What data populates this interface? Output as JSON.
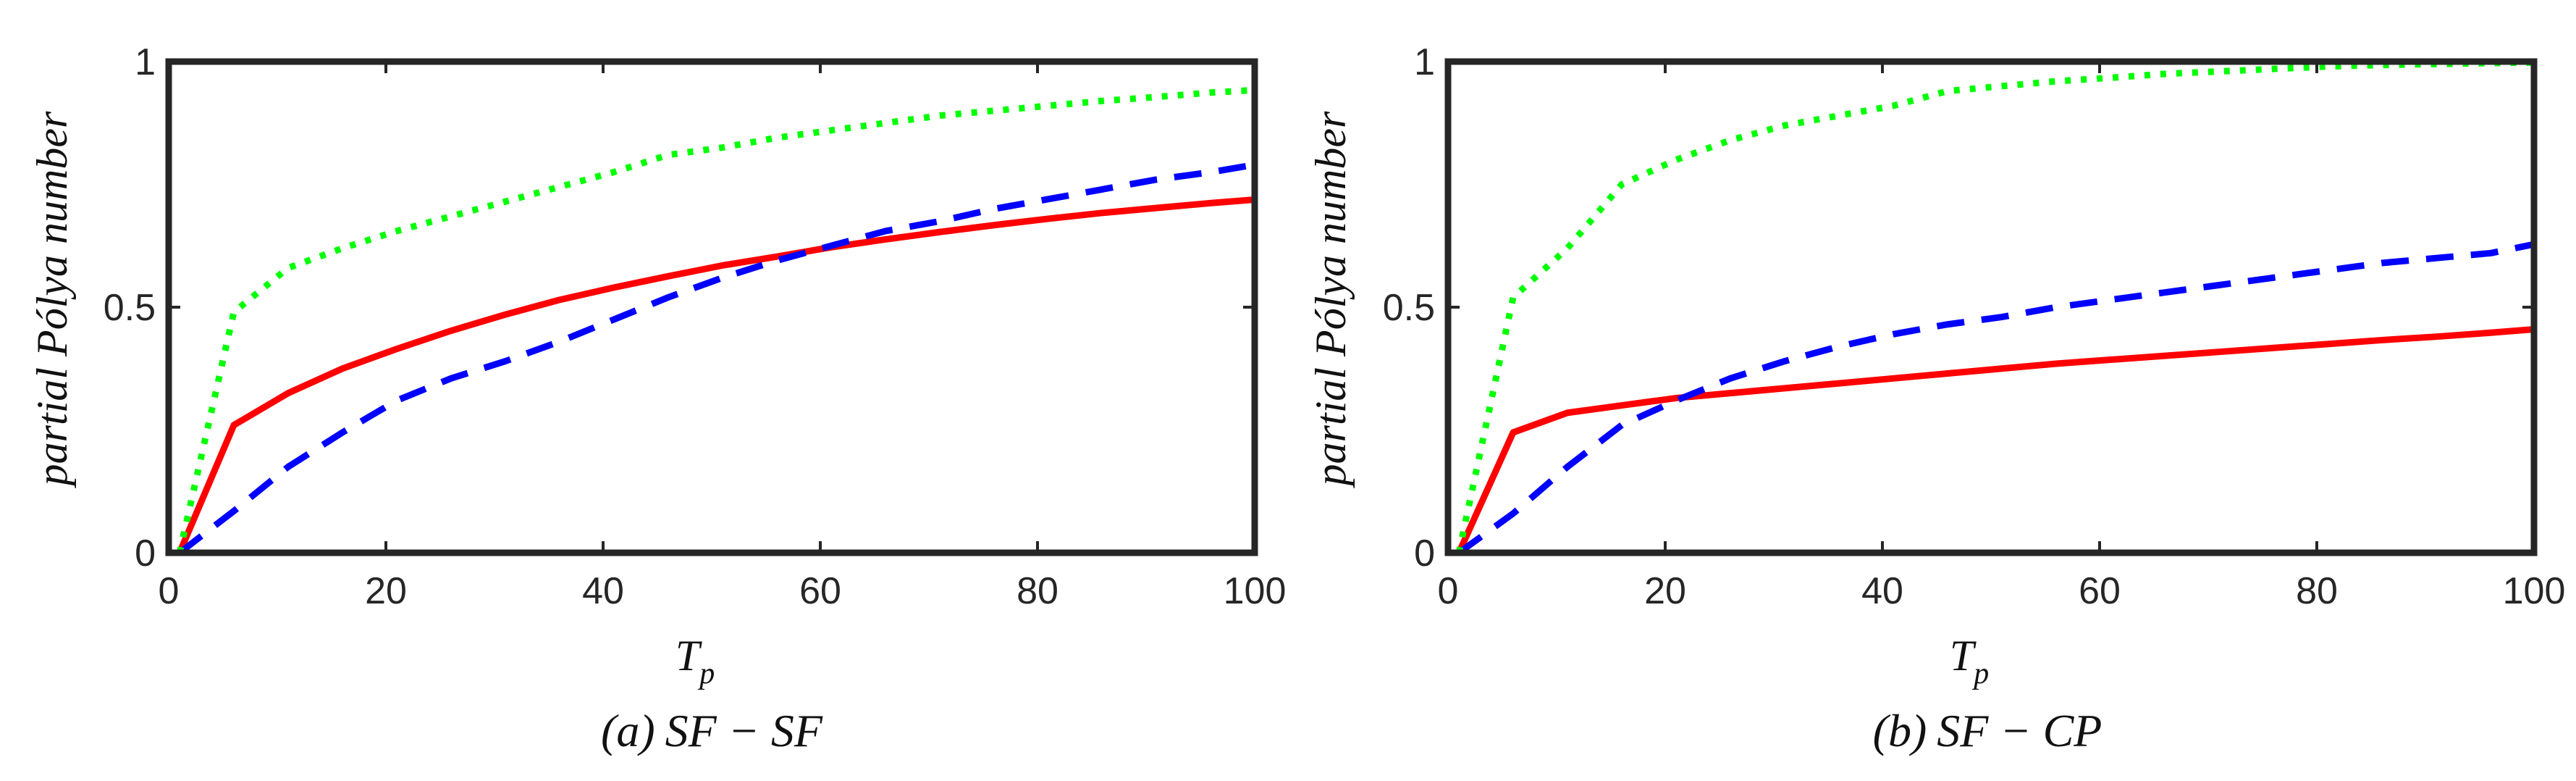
{
  "colors": {
    "solid": "#ff0000",
    "dashed": "#0000ff",
    "dotted": "#00ff00",
    "axis": "#262626"
  },
  "chart_data": [
    {
      "type": "line",
      "caption": {
        "label": "(a)",
        "text": "SF − SF"
      },
      "xlabel": {
        "main": "T",
        "sub": "p"
      },
      "ylabel": "partial Pólya number",
      "xlim": [
        0,
        100
      ],
      "ylim": [
        0,
        1
      ],
      "xticks": [
        "0",
        "20",
        "40",
        "60",
        "80",
        "100"
      ],
      "yticks": [
        "0",
        "0.5",
        "1"
      ],
      "series": [
        {
          "name": "solid",
          "style": "solid",
          "color": "#ff0000",
          "x": [
            1,
            6,
            11,
            16,
            21,
            26,
            31,
            36,
            41,
            46,
            51,
            56,
            61,
            66,
            71,
            76,
            81,
            86,
            91,
            96,
            100
          ],
          "y": [
            0,
            0.26,
            0.325,
            0.375,
            0.415,
            0.452,
            0.485,
            0.515,
            0.54,
            0.563,
            0.585,
            0.603,
            0.622,
            0.638,
            0.653,
            0.667,
            0.68,
            0.692,
            0.702,
            0.712,
            0.719
          ]
        },
        {
          "name": "dashed",
          "style": "dashed",
          "color": "#0000ff",
          "x": [
            1,
            6,
            11,
            16,
            21,
            26,
            31,
            36,
            41,
            46,
            51,
            56,
            61,
            66,
            71,
            76,
            81,
            86,
            91,
            96,
            100
          ],
          "y": [
            0,
            0.085,
            0.175,
            0.245,
            0.31,
            0.355,
            0.39,
            0.43,
            0.475,
            0.52,
            0.56,
            0.595,
            0.625,
            0.655,
            0.675,
            0.7,
            0.72,
            0.74,
            0.76,
            0.775,
            0.79
          ]
        },
        {
          "name": "dotted",
          "style": "dotted",
          "color": "#00ff00",
          "x": [
            1,
            6,
            11,
            16,
            21,
            26,
            31,
            36,
            41,
            46,
            51,
            56,
            61,
            66,
            71,
            76,
            81,
            86,
            91,
            96,
            100
          ],
          "y": [
            0,
            0.49,
            0.58,
            0.62,
            0.655,
            0.685,
            0.715,
            0.745,
            0.775,
            0.81,
            0.825,
            0.845,
            0.86,
            0.875,
            0.89,
            0.9,
            0.91,
            0.92,
            0.928,
            0.937,
            0.942
          ]
        }
      ]
    },
    {
      "type": "line",
      "caption": {
        "label": "(b)",
        "text": "SF − CP"
      },
      "xlabel": {
        "main": "T",
        "sub": "p"
      },
      "ylabel": "partial Pólya number",
      "xlim": [
        0,
        100
      ],
      "ylim": [
        0,
        1
      ],
      "xticks": [
        "0",
        "20",
        "40",
        "60",
        "80",
        "100"
      ],
      "yticks": [
        "0",
        "0.5",
        "1"
      ],
      "series": [
        {
          "name": "solid",
          "style": "solid",
          "color": "#ff0000",
          "x": [
            1,
            6,
            11,
            16,
            21,
            26,
            31,
            36,
            41,
            46,
            51,
            56,
            61,
            66,
            71,
            76,
            81,
            86,
            91,
            96,
            100
          ],
          "y": [
            0,
            0.245,
            0.285,
            0.3,
            0.315,
            0.325,
            0.335,
            0.345,
            0.355,
            0.365,
            0.375,
            0.385,
            0.393,
            0.401,
            0.409,
            0.417,
            0.425,
            0.433,
            0.44,
            0.448,
            0.455
          ]
        },
        {
          "name": "dashed",
          "style": "dashed",
          "color": "#0000ff",
          "x": [
            1,
            6,
            11,
            16,
            21,
            26,
            31,
            36,
            41,
            46,
            51,
            56,
            61,
            66,
            71,
            76,
            81,
            86,
            91,
            96,
            100
          ],
          "y": [
            0,
            0.08,
            0.175,
            0.26,
            0.31,
            0.355,
            0.39,
            0.42,
            0.445,
            0.465,
            0.48,
            0.5,
            0.515,
            0.53,
            0.545,
            0.56,
            0.575,
            0.59,
            0.6,
            0.61,
            0.628
          ]
        },
        {
          "name": "dotted",
          "style": "dotted",
          "color": "#00ff00",
          "x": [
            1,
            6,
            11,
            16,
            21,
            26,
            31,
            36,
            41,
            46,
            51,
            56,
            61,
            66,
            71,
            76,
            81,
            86,
            91,
            96,
            100
          ],
          "y": [
            0,
            0.52,
            0.62,
            0.75,
            0.8,
            0.84,
            0.87,
            0.89,
            0.91,
            0.94,
            0.95,
            0.96,
            0.967,
            0.975,
            0.98,
            0.985,
            0.99,
            0.993,
            0.995,
            0.997,
            0.998
          ]
        }
      ]
    }
  ]
}
